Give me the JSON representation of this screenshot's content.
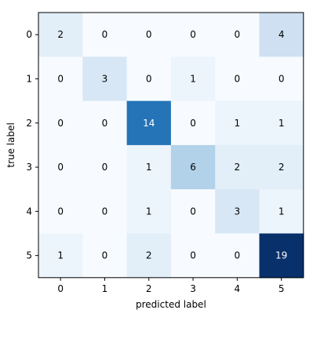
{
  "chart_data": {
    "type": "heatmap",
    "title": "",
    "xlabel": "predicted label",
    "ylabel": "true label",
    "x_categories": [
      "0",
      "1",
      "2",
      "3",
      "4",
      "5"
    ],
    "y_categories": [
      "0",
      "1",
      "2",
      "3",
      "4",
      "5"
    ],
    "matrix": [
      [
        2,
        0,
        0,
        0,
        0,
        4
      ],
      [
        0,
        3,
        0,
        1,
        0,
        0
      ],
      [
        0,
        0,
        14,
        0,
        1,
        1
      ],
      [
        0,
        0,
        1,
        6,
        2,
        2
      ],
      [
        0,
        0,
        1,
        0,
        3,
        1
      ],
      [
        1,
        0,
        2,
        0,
        0,
        19
      ]
    ],
    "value_range": [
      0,
      19
    ],
    "colormap": "Blues",
    "colormap_stops": [
      "#f7fbff",
      "#deebf7",
      "#c6dbef",
      "#9ecae1",
      "#6baed6",
      "#4292c6",
      "#2171b5",
      "#08519c",
      "#08306b"
    ],
    "text_color_light": "#ffffff",
    "text_color_dark": "#000000"
  }
}
